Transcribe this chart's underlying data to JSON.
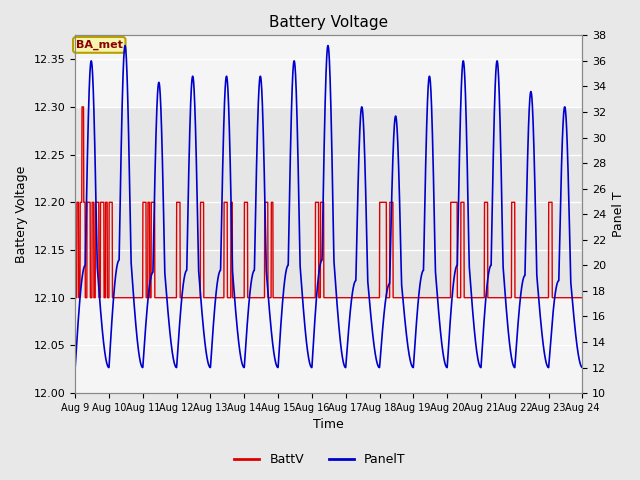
{
  "title": "Battery Voltage",
  "xlabel": "Time",
  "ylabel_left": "Battery Voltage",
  "ylabel_right": "Panel T",
  "ylim_left": [
    12.0,
    12.375
  ],
  "ylim_right": [
    10,
    38
  ],
  "yticks_left": [
    12.0,
    12.05,
    12.1,
    12.15,
    12.2,
    12.25,
    12.3,
    12.35
  ],
  "yticks_right": [
    10,
    12,
    14,
    16,
    18,
    20,
    22,
    24,
    26,
    28,
    30,
    32,
    34,
    36,
    38
  ],
  "xtick_labels": [
    "Aug 9",
    "Aug 10",
    "Aug 11",
    "Aug 12",
    "Aug 13",
    "Aug 14",
    "Aug 15",
    "Aug 16",
    "Aug 17",
    "Aug 18",
    "Aug 19",
    "Aug 20",
    "Aug 21",
    "Aug 22",
    "Aug 23",
    "Aug 24"
  ],
  "background_color": "#e8e8e8",
  "plot_bg_color": "#e8e8e8",
  "plot_inner_color": "#f5f5f5",
  "grid_color": "#ffffff",
  "annotation_text": "BA_met",
  "annotation_bg": "#f5f5b0",
  "annotation_border": "#b8a000",
  "batt_color": "#dd0000",
  "panel_color": "#0000cc",
  "figsize": [
    6.4,
    4.8
  ],
  "dpi": 100
}
